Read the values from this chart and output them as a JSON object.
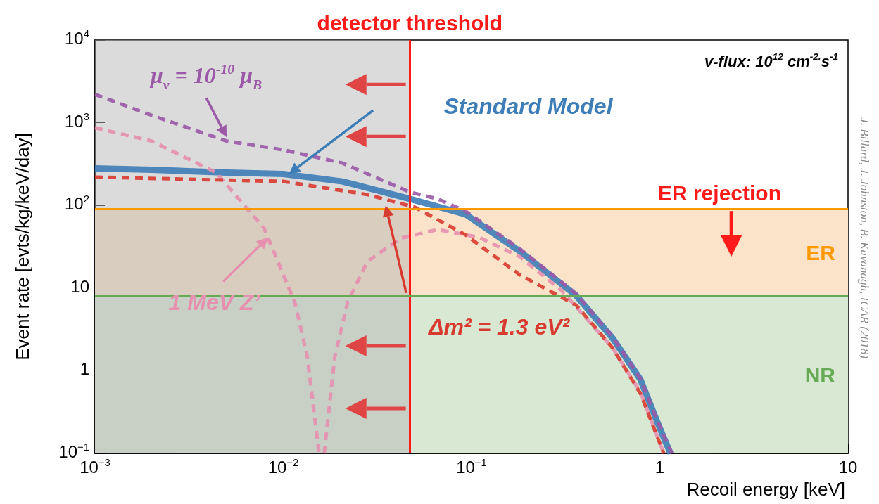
{
  "chart_data": {
    "type": "line",
    "xlabel": "Recoil energy [keV]",
    "ylabel": "Event rate [evts/kg/keV/day]",
    "log": "xy",
    "xlim": [
      0.001,
      10
    ],
    "ylim": [
      0.1,
      10000
    ],
    "xticks": [
      {
        "value": 0.001,
        "label": "10$^{−3}$"
      },
      {
        "value": 0.01,
        "label": "10$^{−2}$"
      },
      {
        "value": 0.1,
        "label": "10$^{−1}$"
      },
      1,
      10
    ],
    "yticks": [
      {
        "value": 0.1,
        "label": "10$^{−1}$"
      },
      1,
      10,
      {
        "value": 100,
        "label": "10$^{2}$"
      },
      {
        "value": 1000,
        "label": "10$^{3}$"
      },
      {
        "value": 10000,
        "label": "10$^{4}$"
      }
    ],
    "grid": false,
    "marker": "none",
    "series": [
      {
        "name": "Standard Model",
        "color": "#3d7db8",
        "line_style": "solid",
        "x": [
          0.001,
          0.002,
          0.005,
          0.01,
          0.0206,
          0.047,
          0.093,
          0.18,
          0.36,
          0.56,
          0.79,
          0.97,
          1.14
        ],
        "values": [
          280,
          270,
          250,
          240,
          195,
          120,
          78,
          28,
          8.1,
          2.5,
          0.78,
          0.24,
          0.1
        ]
      },
      {
        "name": "μ$_{ν}$ = 10$^{-10}$ μ$_{B}$",
        "color": "#9b59a8",
        "line_style": "dotted",
        "x": [
          0.001,
          0.002,
          0.005,
          0.01,
          0.0206,
          0.047,
          0.066,
          0.093,
          0.18,
          0.36,
          0.56,
          0.79,
          0.97,
          1.16
        ],
        "values": [
          2200,
          1230,
          600,
          470,
          325,
          145,
          120,
          85,
          30,
          8.5,
          2.6,
          0.8,
          0.25,
          0.1
        ]
      },
      {
        "name": "1 MeV Z’",
        "color": "#e68fae",
        "line_style": "dotted",
        "x": [
          0.001,
          0.002,
          0.0044,
          0.0079,
          0.0115,
          0.0134,
          0.0155,
          0.016,
          0.0165,
          0.0188,
          0.022,
          0.028,
          0.042,
          0.066,
          0.11,
          0.18,
          0.3,
          0.56,
          0.79,
          1.05
        ],
        "values": [
          870,
          600,
          250,
          53,
          6.8,
          1.5,
          0.1,
          null,
          0.1,
          1.5,
          6.8,
          21,
          40,
          51,
          41,
          24,
          9.4,
          1.9,
          0.55,
          0.1
        ]
      },
      {
        "name": "Δm² = 1.3 eV²",
        "color": "#d93a30",
        "line_style": "dotted",
        "x": [
          0.001,
          0.01,
          0.028,
          0.05,
          0.093,
          0.18,
          0.36,
          0.56,
          0.79,
          1.05
        ],
        "values": [
          220,
          195,
          135,
          95,
          44,
          14.5,
          6.2,
          1.9,
          0.53,
          0.1
        ]
      }
    ],
    "ref_lines": [
      {
        "axis": "x",
        "value": 0.047,
        "label": "detector threshold",
        "color": "#ff1a1a"
      },
      {
        "axis": "y",
        "value": 90,
        "label": "ER rejection",
        "color": "#ff9900"
      },
      {
        "axis": "y",
        "value": 8,
        "color": "#66aa55"
      }
    ],
    "bands": [
      {
        "axis": "y",
        "from": 8,
        "to": 90,
        "label": "ER",
        "color": "#fbe3c9"
      },
      {
        "axis": "y",
        "from": 0.1,
        "to": 8,
        "label": "NR",
        "color": "#d9e8d2"
      },
      {
        "axis": "x",
        "from": 0.001,
        "to": 0.047,
        "color": "#b8b8b8"
      }
    ],
    "annotations": [
      "v-flux: 10$^{12}$ cm$^{-2.}$s$^{-1}$",
      "J. Billard, J. Johnston, B. Kavanagh, ICAR (2018)"
    ]
  }
}
